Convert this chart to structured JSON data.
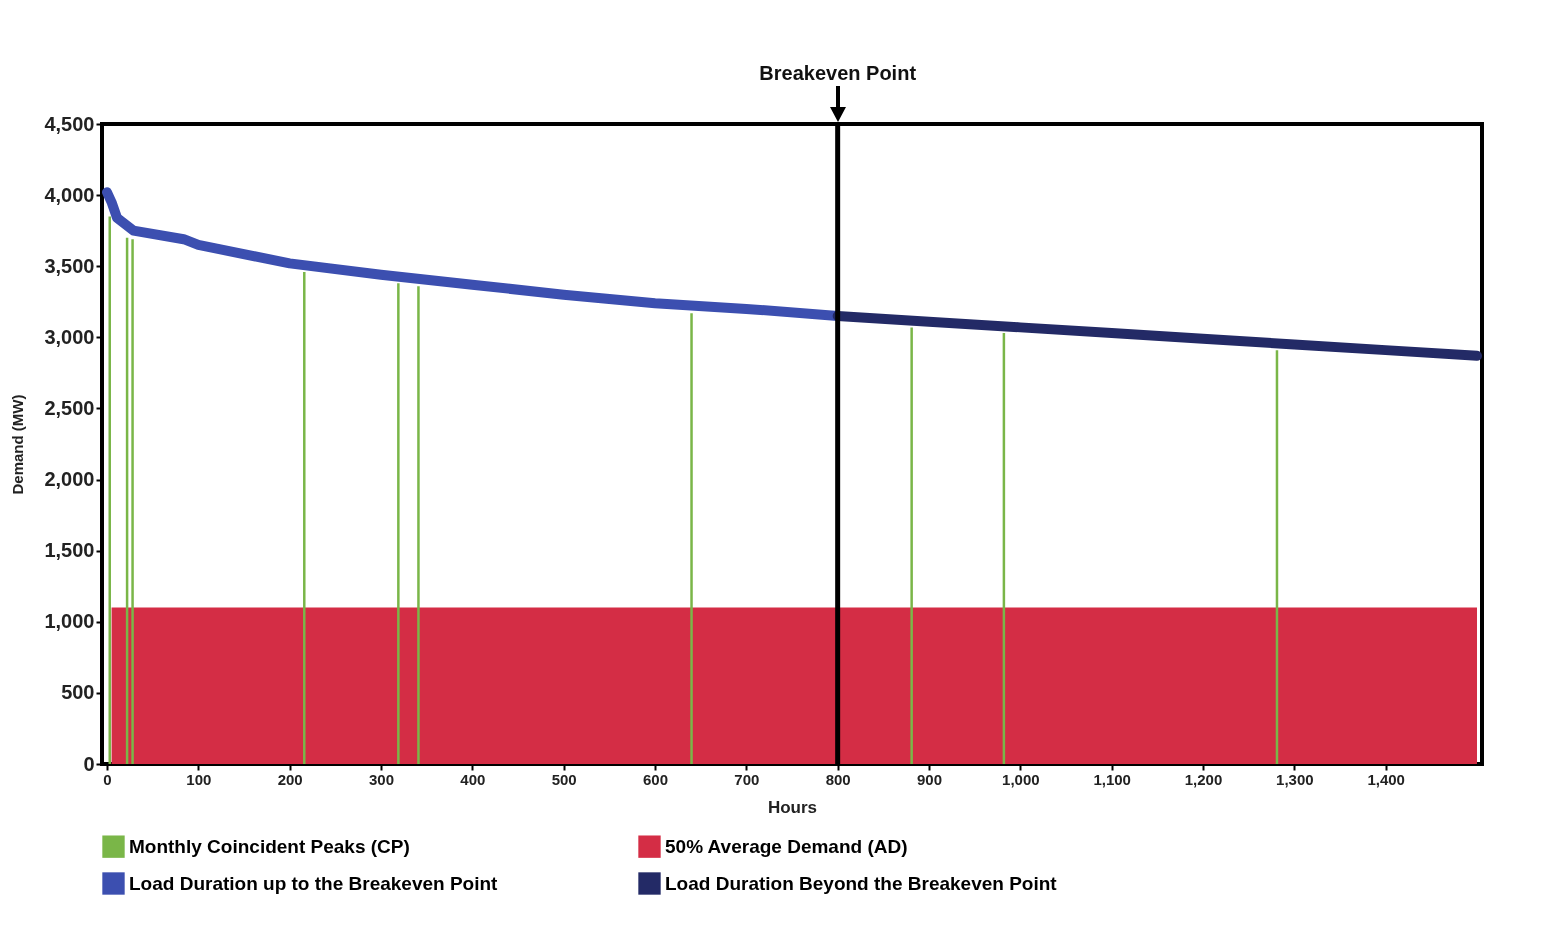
{
  "chart_data": {
    "type": "line",
    "xlabel": "Hours",
    "ylabel": "Demand (MW)",
    "xlim": [
      0,
      1500
    ],
    "xticks": [
      0,
      100,
      200,
      300,
      400,
      500,
      600,
      700,
      800,
      900,
      {
        "value": 1000,
        "label": "1,000"
      },
      {
        "value": 1100,
        "label": "1,100"
      },
      {
        "value": 1200,
        "label": "1,200"
      },
      {
        "value": 1300,
        "label": "1,300"
      },
      {
        "value": 1400,
        "label": "1,400"
      }
    ],
    "ylim": [
      0,
      4500
    ],
    "yticks": [
      0,
      500,
      {
        "value": 1000,
        "label": "1,000"
      },
      {
        "value": 1500,
        "label": "1,500"
      },
      {
        "value": 2000,
        "label": "2,000"
      },
      {
        "value": 2500,
        "label": "2,500"
      },
      {
        "value": 3000,
        "label": "3,000"
      },
      {
        "value": 3500,
        "label": "3,500"
      },
      {
        "value": 4000,
        "label": "4,000"
      },
      {
        "value": 4500,
        "label": "4,500"
      }
    ],
    "grid": false,
    "legend": "bottom",
    "ref_lines": [
      {
        "axis": "x",
        "value": 800,
        "label": "Breakeven Point",
        "color": "#000000"
      }
    ],
    "series": [
      {
        "name": "Monthly Coincident Peaks (CP)",
        "type": "bar",
        "color": "#7ab648",
        "x": [
          3,
          22,
          28,
          216,
          319,
          341,
          640,
          881,
          982,
          1281
        ],
        "values": [
          3850,
          3700,
          3690,
          3460,
          3380,
          3360,
          3170,
          3070,
          3030,
          2910
        ]
      },
      {
        "name": "50% Average Demand (AD)",
        "type": "area",
        "color": "#d42d45",
        "x": [
          5,
          1500
        ],
        "values": [
          1100,
          1100
        ]
      },
      {
        "name": "Load Duration up to the Breakeven Point",
        "color": "#3c4fb0",
        "x": [
          0,
          5,
          11,
          29,
          84,
          100,
          200,
          300,
          400,
          500,
          600,
          700,
          800
        ],
        "values": [
          4020,
          3950,
          3840,
          3750,
          3690,
          3650,
          3520,
          3440,
          3370,
          3300,
          3240,
          3200,
          3150
        ]
      },
      {
        "name": "Load Duration Beyond the Breakeven Point",
        "color": "#232a66",
        "x": [
          800,
          900,
          1000,
          1100,
          1200,
          1300,
          1400,
          1500
        ],
        "values": [
          3150,
          3110,
          3070,
          3030,
          2990,
          2950,
          2910,
          2870
        ]
      }
    ]
  }
}
